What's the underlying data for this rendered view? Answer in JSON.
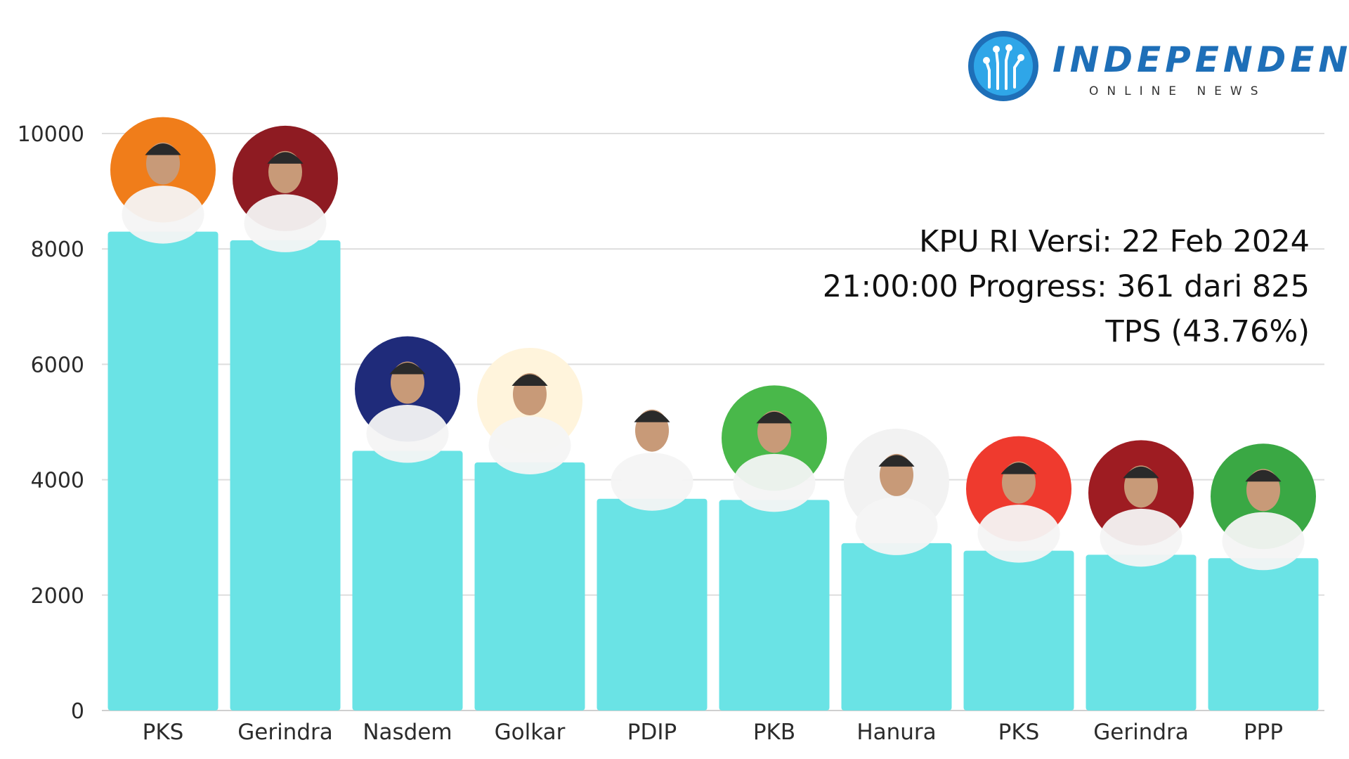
{
  "brand": {
    "name": "INDEPENDEN",
    "subtitle": "ONLINE NEWS",
    "logo_icon": "circuit-hand-icon",
    "colors": {
      "primary": "#1e6fb8",
      "light": "#2fa6e8"
    }
  },
  "info": {
    "line1": "KPU RI Versi: 22 Feb 2024",
    "line2": "21:00:00 Progress: 361 dari 825",
    "line3": "TPS (43.76%)"
  },
  "chart_data": {
    "type": "bar",
    "categories": [
      "PKS",
      "Gerindra",
      "Nasdem",
      "Golkar",
      "PDIP",
      "PKB",
      "Hanura",
      "PKS",
      "Gerindra",
      "PPP"
    ],
    "values": [
      8300,
      8150,
      4500,
      4300,
      3670,
      3650,
      2900,
      2770,
      2700,
      2640
    ],
    "ylim": [
      0,
      10000
    ],
    "yticks": [
      0,
      2000,
      4000,
      6000,
      8000,
      10000
    ],
    "grid": true,
    "bar_color": "#6ae3e5",
    "candidate_photo_colors": [
      "#f07d1a",
      "#8e1b22",
      "#1f2b7a",
      "#fff4dc",
      "#ffffff",
      "#49b84a",
      "#f2f2f2",
      "#ef3a2e",
      "#9e1c22",
      "#3aa844"
    ]
  }
}
